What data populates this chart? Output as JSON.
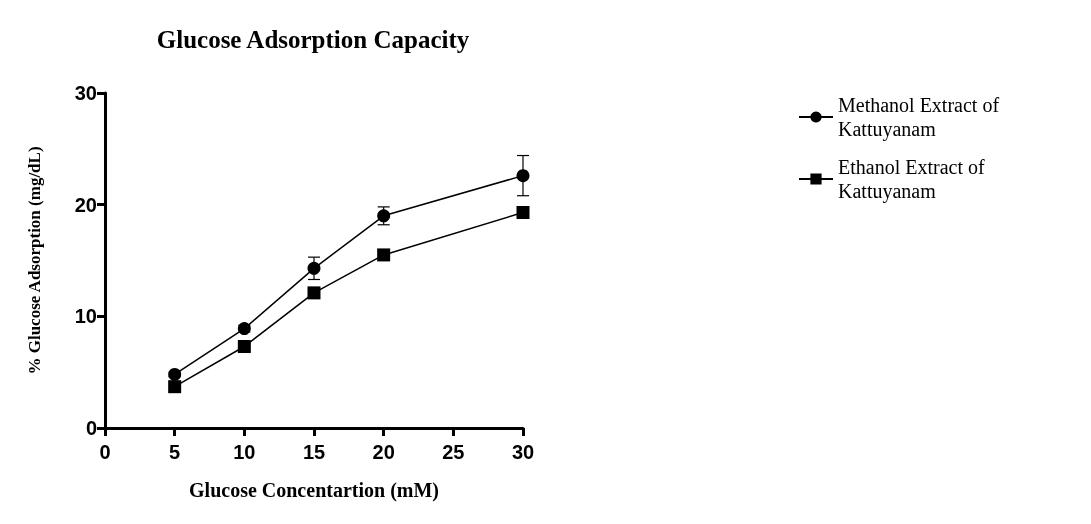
{
  "chart_data": {
    "type": "line",
    "title": "Glucose Adsorption Capacity",
    "xlabel": "Glucose Concentartion (mM)",
    "ylabel": "% Glucose Adsorption (mg/dL)",
    "x": [
      5,
      10,
      15,
      20,
      30
    ],
    "xlim": [
      0,
      30
    ],
    "xticks": [
      0,
      5,
      10,
      15,
      20,
      25,
      30
    ],
    "ylim": [
      0,
      30
    ],
    "yticks": [
      0,
      10,
      20,
      30
    ],
    "grid": false,
    "legend": "top right",
    "line_style": "solid",
    "series": [
      {
        "name": "Methanol Extract of Kattuyanam",
        "color": "#000000",
        "marker": "circle",
        "values": [
          4.8,
          8.9,
          14.3,
          19.0,
          22.6
        ],
        "errors": [
          0.2,
          0.3,
          1.0,
          0.8,
          1.8
        ]
      },
      {
        "name": "Ethanol Extract of Kattuyanam",
        "color": "#000000",
        "marker": "square",
        "values": [
          3.7,
          7.3,
          12.1,
          15.5,
          19.3
        ],
        "errors": [
          null,
          null,
          0.4,
          0.3,
          null
        ]
      }
    ]
  }
}
